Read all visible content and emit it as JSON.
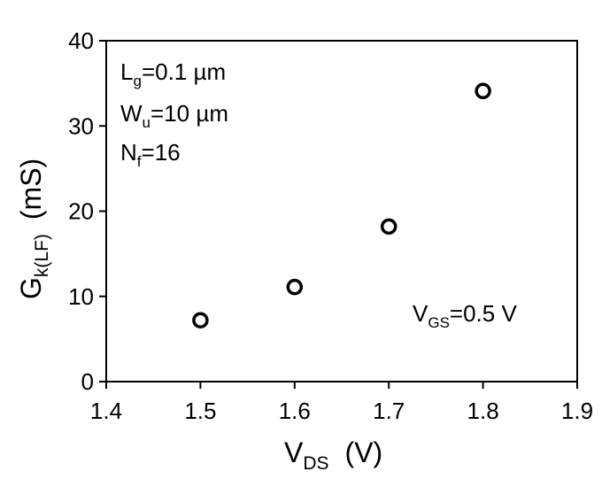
{
  "chart_data": {
    "type": "scatter",
    "x": [
      1.5,
      1.6,
      1.7,
      1.8
    ],
    "y": [
      7.2,
      11.1,
      18.2,
      34.1
    ],
    "xlim": [
      1.4,
      1.9
    ],
    "ylim": [
      0,
      40
    ],
    "x_ticks": [
      "1.4",
      "1.5",
      "1.6",
      "1.7",
      "1.8",
      "1.9"
    ],
    "y_ticks": [
      "0",
      "10",
      "20",
      "30",
      "40"
    ],
    "xlabel": {
      "main": "V",
      "sub": "DS",
      "unit": "(V)"
    },
    "ylabel": {
      "main": "G",
      "sub": "k(LF)",
      "unit": "(mS)"
    },
    "annotations": {
      "lg": {
        "main": "L",
        "sub": "g",
        "value": "=0.1 µm"
      },
      "wu": {
        "main": "W",
        "sub": "u",
        "value": "=10 µm"
      },
      "nf": {
        "main": "N",
        "sub": "f",
        "value": "=16"
      },
      "vgs": {
        "main": "V",
        "sub": "GS",
        "value": "=0.5 V"
      }
    },
    "marker": "open-circle",
    "grid": false,
    "legend": "none"
  }
}
